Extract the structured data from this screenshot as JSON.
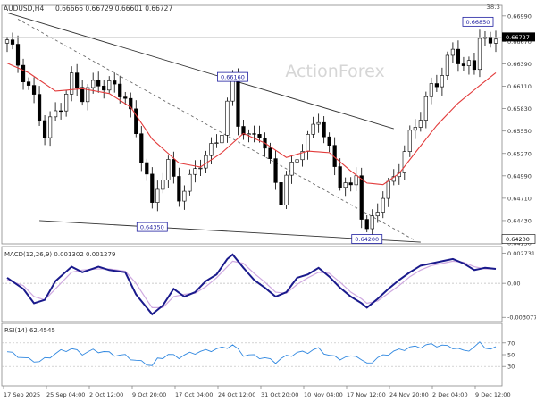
{
  "symbol": {
    "title": "AUDUSD,H4",
    "ohlc": "0.66666 0.66729 0.66601 0.66727",
    "corner_value": "38.3",
    "watermark": "ActionForex"
  },
  "colors": {
    "candle": "#000000",
    "ma": "#e23b3b",
    "trendline": "#333333",
    "dashed": "#6b6b6b",
    "macd_line": "#1a1a8c",
    "macd_signal": "#cfa9e0",
    "rsi": "#2f87e0",
    "label_box": "#1f1fa0",
    "price_box": "#000000",
    "grid": "#bbbbbb"
  },
  "chart_data": [
    {
      "type": "candlestick",
      "panel": "price",
      "ylim": [
        0.6415,
        0.671
      ],
      "y_ticks": [
        "0.66990",
        "0.66670",
        "0.66390",
        "0.66110",
        "0.65830",
        "0.65550",
        "0.65270",
        "0.64990",
        "0.64710",
        "0.64430",
        "0.64150"
      ],
      "x_ticks": [
        "17 Sep 2025",
        "25 Sep 04:00",
        "2 Oct 12:00",
        "9 Oct 20:00",
        "17 Oct 04:00",
        "24 Oct 12:00",
        "31 Oct 20:00",
        "10 Nov 04:00",
        "17 Nov 12:00",
        "24 Nov 20:00",
        "2 Dec 04:00",
        "9 Dec 12:00"
      ],
      "current_price": "0.66727",
      "current_price_value": 0.66727,
      "reference_price": "0.64200",
      "reference_price_value": 0.642,
      "annotations": [
        {
          "text": "0.66850",
          "bar": 88,
          "value": 0.6685
        },
        {
          "text": "0.66160",
          "bar": 42,
          "value": 0.6616
        },
        {
          "text": "0.64350",
          "bar": 27,
          "value": 0.6435
        },
        {
          "text": "0.64200",
          "bar": 67,
          "value": 0.642
        }
      ],
      "bar_count": 92,
      "price_path": [
        [
          0,
          0.6665
        ],
        [
          3,
          0.6628
        ],
        [
          5,
          0.6595
        ],
        [
          7,
          0.6548
        ],
        [
          9,
          0.6578
        ],
        [
          12,
          0.662
        ],
        [
          14,
          0.6596
        ],
        [
          17,
          0.662
        ],
        [
          19,
          0.6612
        ],
        [
          22,
          0.6596
        ],
        [
          24,
          0.6555
        ],
        [
          26,
          0.65
        ],
        [
          27,
          0.6455
        ],
        [
          28,
          0.6482
        ],
        [
          30,
          0.6515
        ],
        [
          32,
          0.6478
        ],
        [
          34,
          0.649
        ],
        [
          36,
          0.6515
        ],
        [
          38,
          0.6535
        ],
        [
          40,
          0.6558
        ],
        [
          42,
          0.6612
        ],
        [
          43,
          0.6565
        ],
        [
          45,
          0.6548
        ],
        [
          47,
          0.6555
        ],
        [
          49,
          0.6508
        ],
        [
          51,
          0.6472
        ],
        [
          52,
          0.65
        ],
        [
          54,
          0.6525
        ],
        [
          56,
          0.654
        ],
        [
          58,
          0.6575
        ],
        [
          60,
          0.6532
        ],
        [
          62,
          0.649
        ],
        [
          64,
          0.6478
        ],
        [
          65,
          0.6505
        ],
        [
          66,
          0.6455
        ],
        [
          67,
          0.643
        ],
        [
          69,
          0.6458
        ],
        [
          71,
          0.6482
        ],
        [
          73,
          0.6515
        ],
        [
          75,
          0.6548
        ],
        [
          77,
          0.6572
        ],
        [
          79,
          0.661
        ],
        [
          81,
          0.6632
        ],
        [
          83,
          0.6652
        ],
        [
          85,
          0.6635
        ],
        [
          87,
          0.6638
        ],
        [
          88,
          0.6682
        ],
        [
          90,
          0.6655
        ],
        [
          91,
          0.6672
        ]
      ],
      "ma_path": [
        [
          0,
          0.664
        ],
        [
          4,
          0.6628
        ],
        [
          9,
          0.6605
        ],
        [
          14,
          0.6608
        ],
        [
          19,
          0.6602
        ],
        [
          23,
          0.6585
        ],
        [
          27,
          0.6545
        ],
        [
          32,
          0.6515
        ],
        [
          36,
          0.651
        ],
        [
          40,
          0.6528
        ],
        [
          44,
          0.6552
        ],
        [
          48,
          0.654
        ],
        [
          52,
          0.6522
        ],
        [
          56,
          0.653
        ],
        [
          60,
          0.6528
        ],
        [
          64,
          0.6505
        ],
        [
          67,
          0.649
        ],
        [
          70,
          0.6488
        ],
        [
          73,
          0.6502
        ],
        [
          76,
          0.6528
        ],
        [
          80,
          0.6562
        ],
        [
          84,
          0.659
        ],
        [
          88,
          0.6612
        ],
        [
          91,
          0.6628
        ]
      ],
      "trendlines": [
        {
          "style": "solid",
          "from": [
            0,
            0.6703
          ],
          "to": [
            72,
            0.6558
          ]
        },
        {
          "style": "solid",
          "from": [
            6,
            0.6443
          ],
          "to": [
            77,
            0.6416
          ]
        },
        {
          "style": "dashed",
          "from": [
            2,
            0.6695
          ],
          "to": [
            76,
            0.6418
          ]
        }
      ]
    },
    {
      "type": "line",
      "panel": "macd",
      "label": "MACD(12,26,9) 0.001302 0.001279",
      "ylim": [
        -0.0033,
        0.003
      ],
      "y_ticks": [
        "0.002731",
        "0.00",
        "-0.003077"
      ],
      "series": [
        {
          "role": "macd",
          "points": [
            [
              0,
              0.0005
            ],
            [
              3,
              -0.0005
            ],
            [
              5,
              -0.0018
            ],
            [
              7,
              -0.0015
            ],
            [
              9,
              0.0002
            ],
            [
              12,
              0.0015
            ],
            [
              14,
              0.001
            ],
            [
              17,
              0.0015
            ],
            [
              19,
              0.0012
            ],
            [
              22,
              0.001
            ],
            [
              24,
              -0.001
            ],
            [
              26,
              -0.0022
            ],
            [
              27,
              -0.0028
            ],
            [
              29,
              -0.002
            ],
            [
              31,
              -0.0005
            ],
            [
              33,
              -0.0012
            ],
            [
              35,
              -0.0008
            ],
            [
              37,
              0.0002
            ],
            [
              39,
              0.0008
            ],
            [
              41,
              0.0022
            ],
            [
              42,
              0.0026
            ],
            [
              44,
              0.0014
            ],
            [
              46,
              0.0003
            ],
            [
              48,
              -0.0004
            ],
            [
              50,
              -0.0012
            ],
            [
              52,
              -0.0008
            ],
            [
              54,
              0.0005
            ],
            [
              56,
              0.0008
            ],
            [
              58,
              0.0014
            ],
            [
              60,
              0.0006
            ],
            [
              62,
              -0.0004
            ],
            [
              64,
              -0.0012
            ],
            [
              66,
              -0.0018
            ],
            [
              67,
              -0.0022
            ],
            [
              69,
              -0.0014
            ],
            [
              71,
              -0.0005
            ],
            [
              73,
              0.0003
            ],
            [
              75,
              0.001
            ],
            [
              77,
              0.0016
            ],
            [
              79,
              0.0018
            ],
            [
              81,
              0.002
            ],
            [
              83,
              0.0022
            ],
            [
              85,
              0.0018
            ],
            [
              87,
              0.0012
            ],
            [
              89,
              0.0014
            ],
            [
              91,
              0.0013
            ]
          ]
        },
        {
          "role": "signal",
          "points": [
            [
              0,
              0.0003
            ],
            [
              3,
              -0.0002
            ],
            [
              5,
              -0.0012
            ],
            [
              7,
              -0.0015
            ],
            [
              9,
              -0.0005
            ],
            [
              12,
              0.001
            ],
            [
              14,
              0.0012
            ],
            [
              17,
              0.0013
            ],
            [
              19,
              0.0013
            ],
            [
              22,
              0.0011
            ],
            [
              24,
              0.0
            ],
            [
              26,
              -0.0015
            ],
            [
              27,
              -0.0022
            ],
            [
              29,
              -0.0022
            ],
            [
              31,
              -0.0012
            ],
            [
              33,
              -0.001
            ],
            [
              35,
              -0.0009
            ],
            [
              37,
              -0.0003
            ],
            [
              39,
              0.0005
            ],
            [
              41,
              0.0015
            ],
            [
              42,
              0.002
            ],
            [
              44,
              0.0018
            ],
            [
              46,
              0.0009
            ],
            [
              48,
              0.0001
            ],
            [
              50,
              -0.0008
            ],
            [
              52,
              -0.0009
            ],
            [
              54,
              -0.0001
            ],
            [
              56,
              0.0005
            ],
            [
              58,
              0.001
            ],
            [
              60,
              0.0009
            ],
            [
              62,
              0.0001
            ],
            [
              64,
              -0.0008
            ],
            [
              66,
              -0.0014
            ],
            [
              67,
              -0.0018
            ],
            [
              69,
              -0.0016
            ],
            [
              71,
              -0.0009
            ],
            [
              73,
              -0.0002
            ],
            [
              75,
              0.0006
            ],
            [
              77,
              0.0012
            ],
            [
              79,
              0.0016
            ],
            [
              81,
              0.0018
            ],
            [
              83,
              0.002
            ],
            [
              85,
              0.0019
            ],
            [
              87,
              0.0015
            ],
            [
              89,
              0.0013
            ],
            [
              91,
              0.0013
            ]
          ]
        }
      ]
    },
    {
      "type": "line",
      "panel": "rsi",
      "label": "RSI(14) 62.4545",
      "ylim": [
        0,
        100
      ],
      "y_ticks": [
        "70",
        "50",
        "30"
      ],
      "guide_levels": [
        70,
        30
      ],
      "series": [
        {
          "role": "rsi",
          "points": [
            [
              0,
              55
            ],
            [
              2,
              48
            ],
            [
              4,
              42
            ],
            [
              6,
              38
            ],
            [
              8,
              47
            ],
            [
              10,
              56
            ],
            [
              12,
              60
            ],
            [
              14,
              52
            ],
            [
              16,
              57
            ],
            [
              18,
              55
            ],
            [
              20,
              50
            ],
            [
              22,
              48
            ],
            [
              24,
              40
            ],
            [
              26,
              35
            ],
            [
              27,
              31
            ],
            [
              28,
              42
            ],
            [
              30,
              50
            ],
            [
              32,
              46
            ],
            [
              34,
              52
            ],
            [
              36,
              55
            ],
            [
              38,
              58
            ],
            [
              40,
              61
            ],
            [
              42,
              66
            ],
            [
              44,
              50
            ],
            [
              46,
              48
            ],
            [
              48,
              44
            ],
            [
              50,
              38
            ],
            [
              52,
              47
            ],
            [
              54,
              53
            ],
            [
              56,
              55
            ],
            [
              58,
              60
            ],
            [
              60,
              48
            ],
            [
              62,
              44
            ],
            [
              64,
              46
            ],
            [
              65,
              50
            ],
            [
              66,
              40
            ],
            [
              67,
              34
            ],
            [
              69,
              44
            ],
            [
              71,
              52
            ],
            [
              73,
              58
            ],
            [
              75,
              62
            ],
            [
              77,
              64
            ],
            [
              79,
              67
            ],
            [
              81,
              65
            ],
            [
              83,
              63
            ],
            [
              85,
              56
            ],
            [
              87,
              62
            ],
            [
              88,
              70
            ],
            [
              90,
              58
            ],
            [
              91,
              62
            ]
          ]
        }
      ]
    }
  ]
}
